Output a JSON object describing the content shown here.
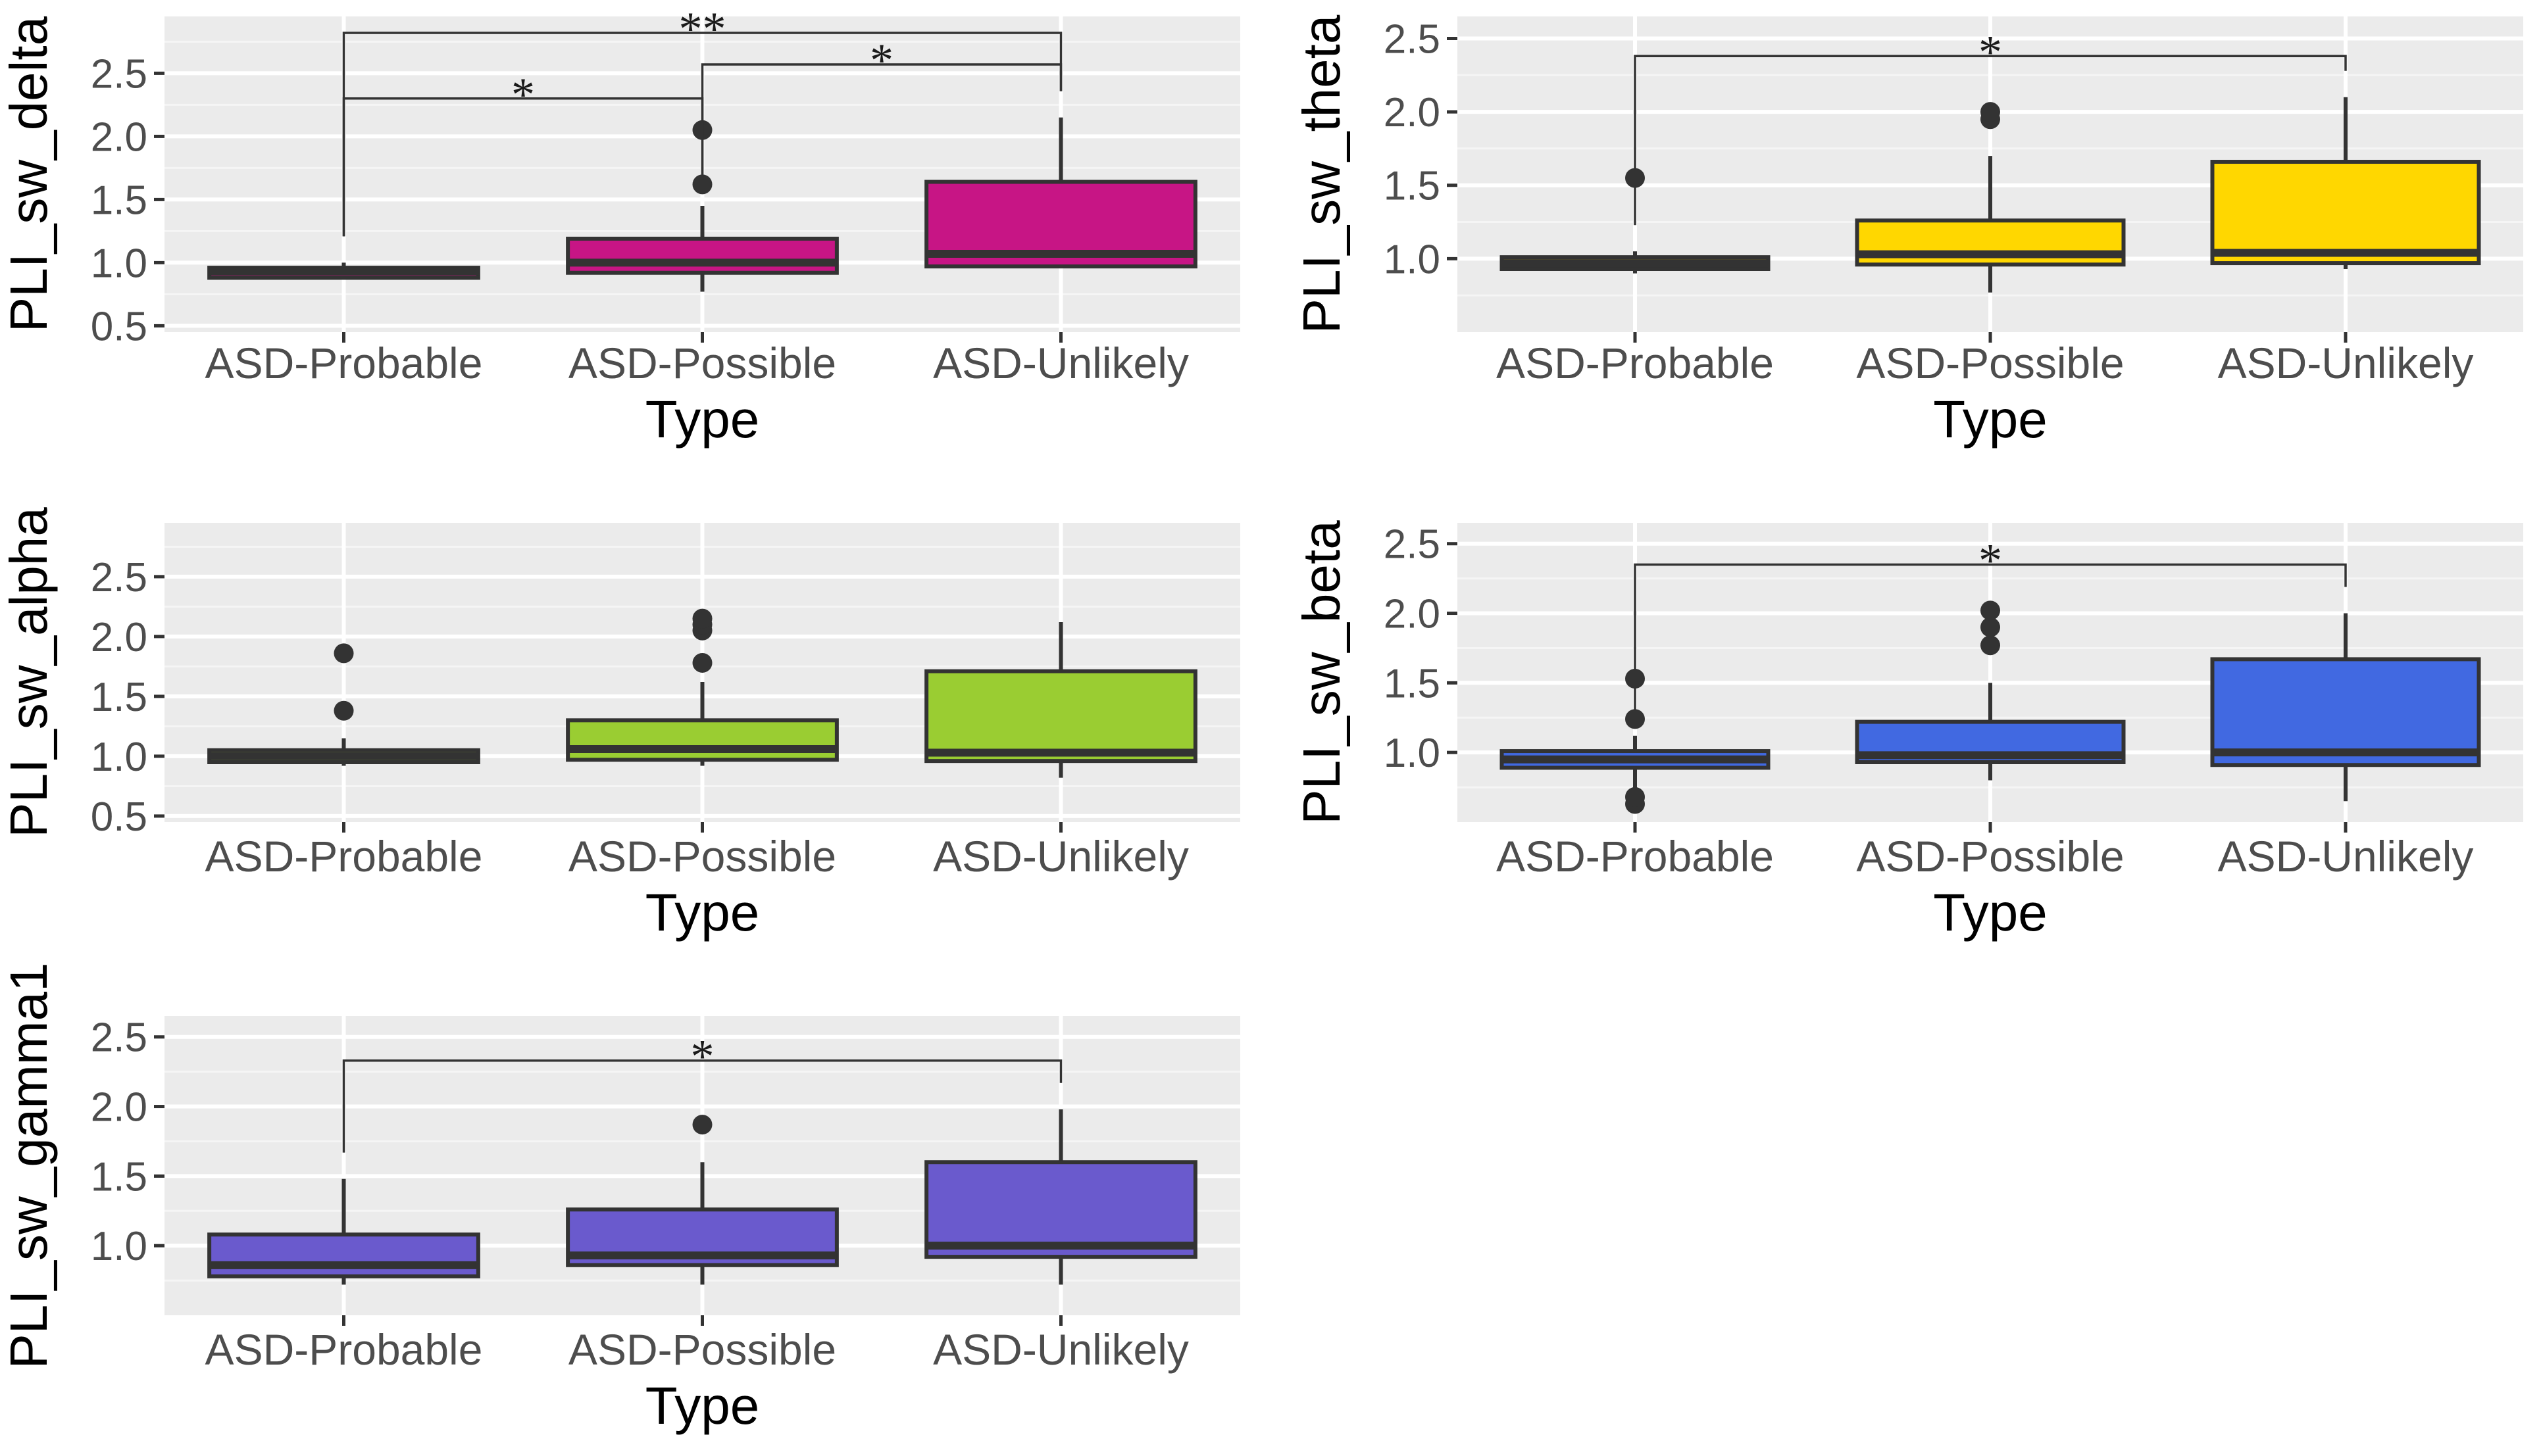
{
  "colors": {
    "panel_bg": "#EBEBEB",
    "grid_major": "#FFFFFF",
    "grid_minor": "#F5F5F5",
    "tick_text": "#4D4D4D",
    "outline": "#333333",
    "bracket": "#333333",
    "page_bg": "#FFFFFF"
  },
  "chart_data": [
    {
      "type": "box",
      "title": "",
      "xlabel": "Type",
      "ylabel": "PLI_sw_delta",
      "fill": "#C71585",
      "categories": [
        "ASD-Probable",
        "ASD-Possible",
        "ASD-Unlikely"
      ],
      "ylim": [
        0.45,
        2.95
      ],
      "yticks": [
        0.5,
        1.0,
        1.5,
        2.0,
        2.5
      ],
      "ytick_labels": [
        "0.5",
        "1.0",
        "1.5",
        "2.0",
        "2.5"
      ],
      "boxes": [
        {
          "whisker_low": 0.88,
          "q1": 0.88,
          "median": 0.93,
          "q3": 0.96,
          "whisker_high": 1.0,
          "outliers": []
        },
        {
          "whisker_low": 0.77,
          "q1": 0.92,
          "median": 1.0,
          "q3": 1.19,
          "whisker_high": 1.45,
          "outliers": [
            1.62,
            2.05
          ]
        },
        {
          "whisker_low": 0.97,
          "q1": 0.97,
          "median": 1.07,
          "q3": 1.64,
          "whisker_high": 2.15,
          "outliers": []
        }
      ],
      "significance": [
        {
          "from": 0,
          "to": 1,
          "label": "*",
          "y": 2.3
        },
        {
          "from": 1,
          "to": 2,
          "label": "*",
          "y": 2.57
        },
        {
          "from": 0,
          "to": 2,
          "label": "**",
          "y": 2.82
        }
      ]
    },
    {
      "type": "box",
      "title": "",
      "xlabel": "Type",
      "ylabel": "PLI_sw_theta",
      "fill": "#FFD700",
      "categories": [
        "ASD-Probable",
        "ASD-Possible",
        "ASD-Unlikely"
      ],
      "ylim": [
        0.5,
        2.65
      ],
      "yticks": [
        1.0,
        1.5,
        2.0,
        2.5
      ],
      "ytick_labels": [
        "1.0",
        "1.5",
        "2.0",
        "2.5"
      ],
      "boxes": [
        {
          "whisker_low": 0.9,
          "q1": 0.93,
          "median": 0.97,
          "q3": 1.01,
          "whisker_high": 1.05,
          "outliers": [
            1.55
          ]
        },
        {
          "whisker_low": 0.77,
          "q1": 0.96,
          "median": 1.03,
          "q3": 1.26,
          "whisker_high": 1.7,
          "outliers": [
            1.95,
            2.0
          ]
        },
        {
          "whisker_low": 0.93,
          "q1": 0.97,
          "median": 1.04,
          "q3": 1.66,
          "whisker_high": 2.1,
          "outliers": []
        }
      ],
      "significance": [
        {
          "from": 0,
          "to": 2,
          "label": "*",
          "y": 2.38
        }
      ]
    },
    {
      "type": "box",
      "title": "",
      "xlabel": "Type",
      "ylabel": "PLI_sw_alpha",
      "fill": "#9ACD32",
      "categories": [
        "ASD-Probable",
        "ASD-Possible",
        "ASD-Unlikely"
      ],
      "ylim": [
        0.45,
        2.95
      ],
      "yticks": [
        0.5,
        1.0,
        1.5,
        2.0,
        2.5
      ],
      "ytick_labels": [
        "0.5",
        "1.0",
        "1.5",
        "2.0",
        "2.5"
      ],
      "boxes": [
        {
          "whisker_low": 0.92,
          "q1": 0.95,
          "median": 1.0,
          "q3": 1.05,
          "whisker_high": 1.15,
          "outliers": [
            1.38,
            1.86
          ]
        },
        {
          "whisker_low": 0.92,
          "q1": 0.97,
          "median": 1.06,
          "q3": 1.3,
          "whisker_high": 1.62,
          "outliers": [
            1.78,
            2.05,
            2.1,
            2.15
          ]
        },
        {
          "whisker_low": 0.82,
          "q1": 0.96,
          "median": 1.03,
          "q3": 1.71,
          "whisker_high": 2.12,
          "outliers": []
        }
      ],
      "significance": []
    },
    {
      "type": "box",
      "title": "",
      "xlabel": "Type",
      "ylabel": "PLI_sw_beta",
      "fill": "#4169E1",
      "categories": [
        "ASD-Probable",
        "ASD-Possible",
        "ASD-Unlikely"
      ],
      "ylim": [
        0.5,
        2.65
      ],
      "yticks": [
        1.0,
        1.5,
        2.0,
        2.5
      ],
      "ytick_labels": [
        "1.0",
        "1.5",
        "2.0",
        "2.5"
      ],
      "boxes": [
        {
          "whisker_low": 0.72,
          "q1": 0.89,
          "median": 0.95,
          "q3": 1.01,
          "whisker_high": 1.12,
          "outliers": [
            0.63,
            0.68,
            1.24,
            1.53
          ]
        },
        {
          "whisker_low": 0.8,
          "q1": 0.93,
          "median": 0.98,
          "q3": 1.22,
          "whisker_high": 1.5,
          "outliers": [
            1.77,
            1.9,
            2.02
          ]
        },
        {
          "whisker_low": 0.65,
          "q1": 0.91,
          "median": 1.0,
          "q3": 1.67,
          "whisker_high": 2.0,
          "outliers": []
        }
      ],
      "significance": [
        {
          "from": 0,
          "to": 2,
          "label": "*",
          "y": 2.35
        }
      ]
    },
    {
      "type": "box",
      "title": "",
      "xlabel": "Type",
      "ylabel": "PLI_sw_gamma1",
      "fill": "#6A5ACD",
      "categories": [
        "ASD-Probable",
        "ASD-Possible",
        "ASD-Unlikely"
      ],
      "ylim": [
        0.5,
        2.65
      ],
      "yticks": [
        1.0,
        1.5,
        2.0,
        2.5
      ],
      "ytick_labels": [
        "1.0",
        "1.5",
        "2.0",
        "2.5"
      ],
      "boxes": [
        {
          "whisker_low": 0.72,
          "q1": 0.78,
          "median": 0.86,
          "q3": 1.08,
          "whisker_high": 1.48,
          "outliers": []
        },
        {
          "whisker_low": 0.72,
          "q1": 0.86,
          "median": 0.93,
          "q3": 1.26,
          "whisker_high": 1.6,
          "outliers": [
            1.87
          ]
        },
        {
          "whisker_low": 0.72,
          "q1": 0.92,
          "median": 1.0,
          "q3": 1.6,
          "whisker_high": 1.98,
          "outliers": []
        }
      ],
      "significance": [
        {
          "from": 0,
          "to": 2,
          "label": "*",
          "y": 2.33
        }
      ]
    }
  ]
}
